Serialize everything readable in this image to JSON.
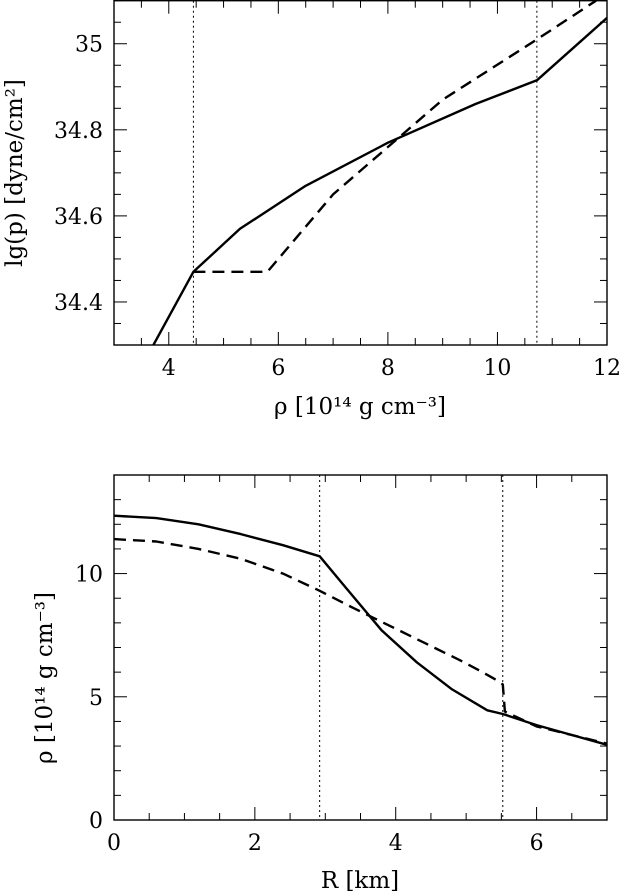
{
  "chart_data": [
    {
      "type": "line",
      "xlabel": "ρ [10¹⁴ g cm⁻³]",
      "ylabel": "lg(p) [dyne/cm²]",
      "xlim": [
        3,
        12
      ],
      "ylim": [
        34.3,
        35.1
      ],
      "xticks": [
        4,
        6,
        8,
        10,
        12
      ],
      "xtick_labels": [
        "4",
        "6",
        "8",
        "10",
        "12"
      ],
      "yticks": [
        34.4,
        34.6,
        34.8,
        35.0
      ],
      "ytick_labels": [
        "34.4",
        "34.6",
        "34.8",
        "35"
      ],
      "x_minor_step": 0.5,
      "y_minor_step": 0.05,
      "vertical_lines": [
        4.45,
        10.72
      ],
      "series": [
        {
          "style": "solid",
          "x": [
            3.72,
            4.45,
            5.3,
            6.5,
            8.0,
            9.6,
            10.72,
            12.0
          ],
          "y": [
            34.3,
            34.47,
            34.57,
            34.67,
            34.77,
            34.86,
            34.915,
            35.06
          ]
        },
        {
          "style": "dashed",
          "x": [
            4.45,
            5.8,
            7.0,
            8.0,
            9.0,
            10.72,
            11.8
          ],
          "y": [
            34.47,
            34.47,
            34.65,
            34.76,
            34.87,
            35.01,
            35.1
          ]
        }
      ]
    },
    {
      "type": "line",
      "xlabel": "R [km]",
      "ylabel": "ρ [10¹⁴ g cm⁻³]",
      "xlim": [
        0,
        7
      ],
      "ylim": [
        0,
        14
      ],
      "xticks": [
        0,
        2,
        4,
        6
      ],
      "xtick_labels": [
        "0",
        "2",
        "4",
        "6"
      ],
      "yticks": [
        0,
        5,
        10
      ],
      "ytick_labels": [
        "0",
        "5",
        "10"
      ],
      "x_minor_step": 0.5,
      "y_minor_step": 1,
      "vertical_lines": [
        2.92,
        5.52
      ],
      "series": [
        {
          "style": "solid",
          "x": [
            0,
            0.6,
            1.2,
            1.8,
            2.4,
            2.92,
            3.3,
            3.8,
            4.3,
            4.8,
            5.3,
            5.52,
            6.0,
            6.5,
            7.0
          ],
          "y": [
            12.35,
            12.25,
            12.0,
            11.6,
            11.15,
            10.7,
            9.4,
            7.7,
            6.4,
            5.3,
            4.45,
            4.3,
            3.85,
            3.45,
            3.05
          ]
        },
        {
          "style": "dashed",
          "x": [
            0,
            0.6,
            1.2,
            1.8,
            2.4,
            2.92,
            3.4,
            3.9,
            4.4,
            4.9,
            5.2,
            5.48,
            5.52,
            5.55,
            6.0,
            6.5,
            7.0
          ],
          "y": [
            11.4,
            11.3,
            11.0,
            10.6,
            10.0,
            9.3,
            8.6,
            7.9,
            7.2,
            6.5,
            6.05,
            5.6,
            5.5,
            4.4,
            3.8,
            3.45,
            3.1
          ]
        }
      ]
    }
  ]
}
